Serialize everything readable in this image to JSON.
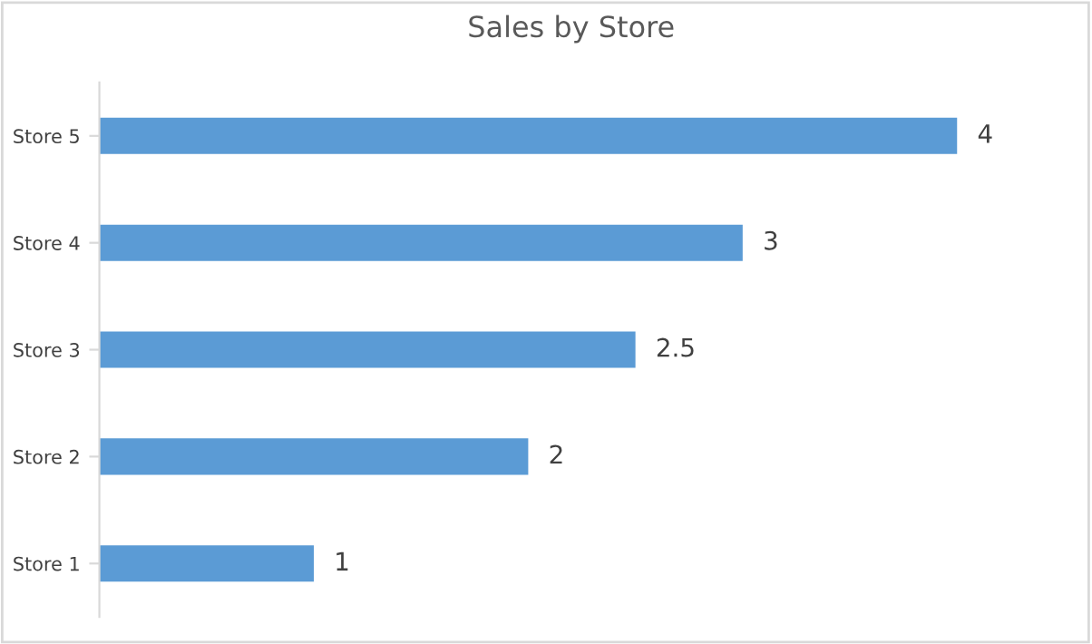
{
  "chart_data": {
    "type": "bar",
    "title": "Sales by Store",
    "orientation": "horizontal",
    "categories": [
      "Store 5",
      "Store 4",
      "Store 3",
      "Store 2",
      "Store 1"
    ],
    "values": [
      4,
      3,
      2.5,
      2,
      1
    ],
    "color": "#5b9bd5",
    "data_labels": true,
    "grid": false,
    "legend": false
  }
}
